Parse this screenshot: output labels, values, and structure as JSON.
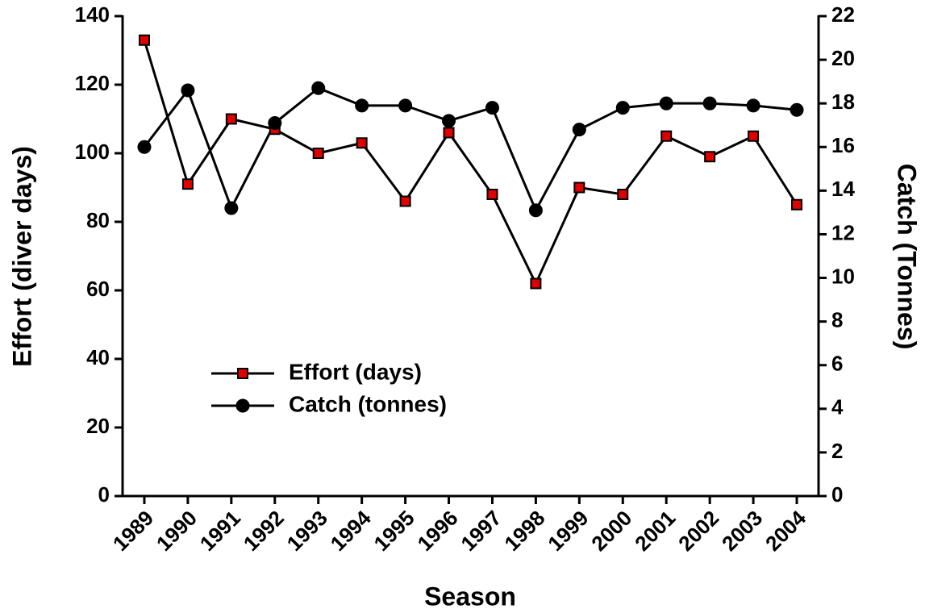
{
  "chart_data": {
    "type": "line",
    "x_label": "Season",
    "y_label": "Effort (diver days)",
    "y2_label": "Catch (Tonnes)",
    "categories": [
      "1989",
      "1990",
      "1991",
      "1992",
      "1993",
      "1994",
      "1995",
      "1996",
      "1997",
      "1998",
      "1999",
      "2000",
      "2001",
      "2002",
      "2003",
      "2004"
    ],
    "series": [
      {
        "name": "Effort (days)",
        "color": "#e00000",
        "marker": "square",
        "values": [
          133,
          91,
          110,
          107,
          100,
          103,
          86,
          106,
          88,
          62,
          90,
          88,
          105,
          99,
          105,
          85
        ]
      },
      {
        "name": "Catch (tonnes)",
        "color": "#000000",
        "marker": "circle",
        "axis": "y2",
        "values": [
          16.0,
          18.6,
          13.2,
          17.1,
          18.7,
          17.9,
          17.9,
          17.2,
          17.8,
          13.1,
          16.8,
          17.8,
          18.0,
          18.0,
          17.9,
          17.7
        ]
      }
    ],
    "ylim": [
      0,
      140
    ],
    "yticks": [
      0,
      20,
      40,
      60,
      80,
      100,
      120,
      140
    ],
    "y2lim": [
      0,
      22
    ],
    "y2ticks": [
      0,
      2,
      4,
      6,
      8,
      10,
      12,
      14,
      16,
      18,
      20,
      22
    ],
    "grid": false
  }
}
